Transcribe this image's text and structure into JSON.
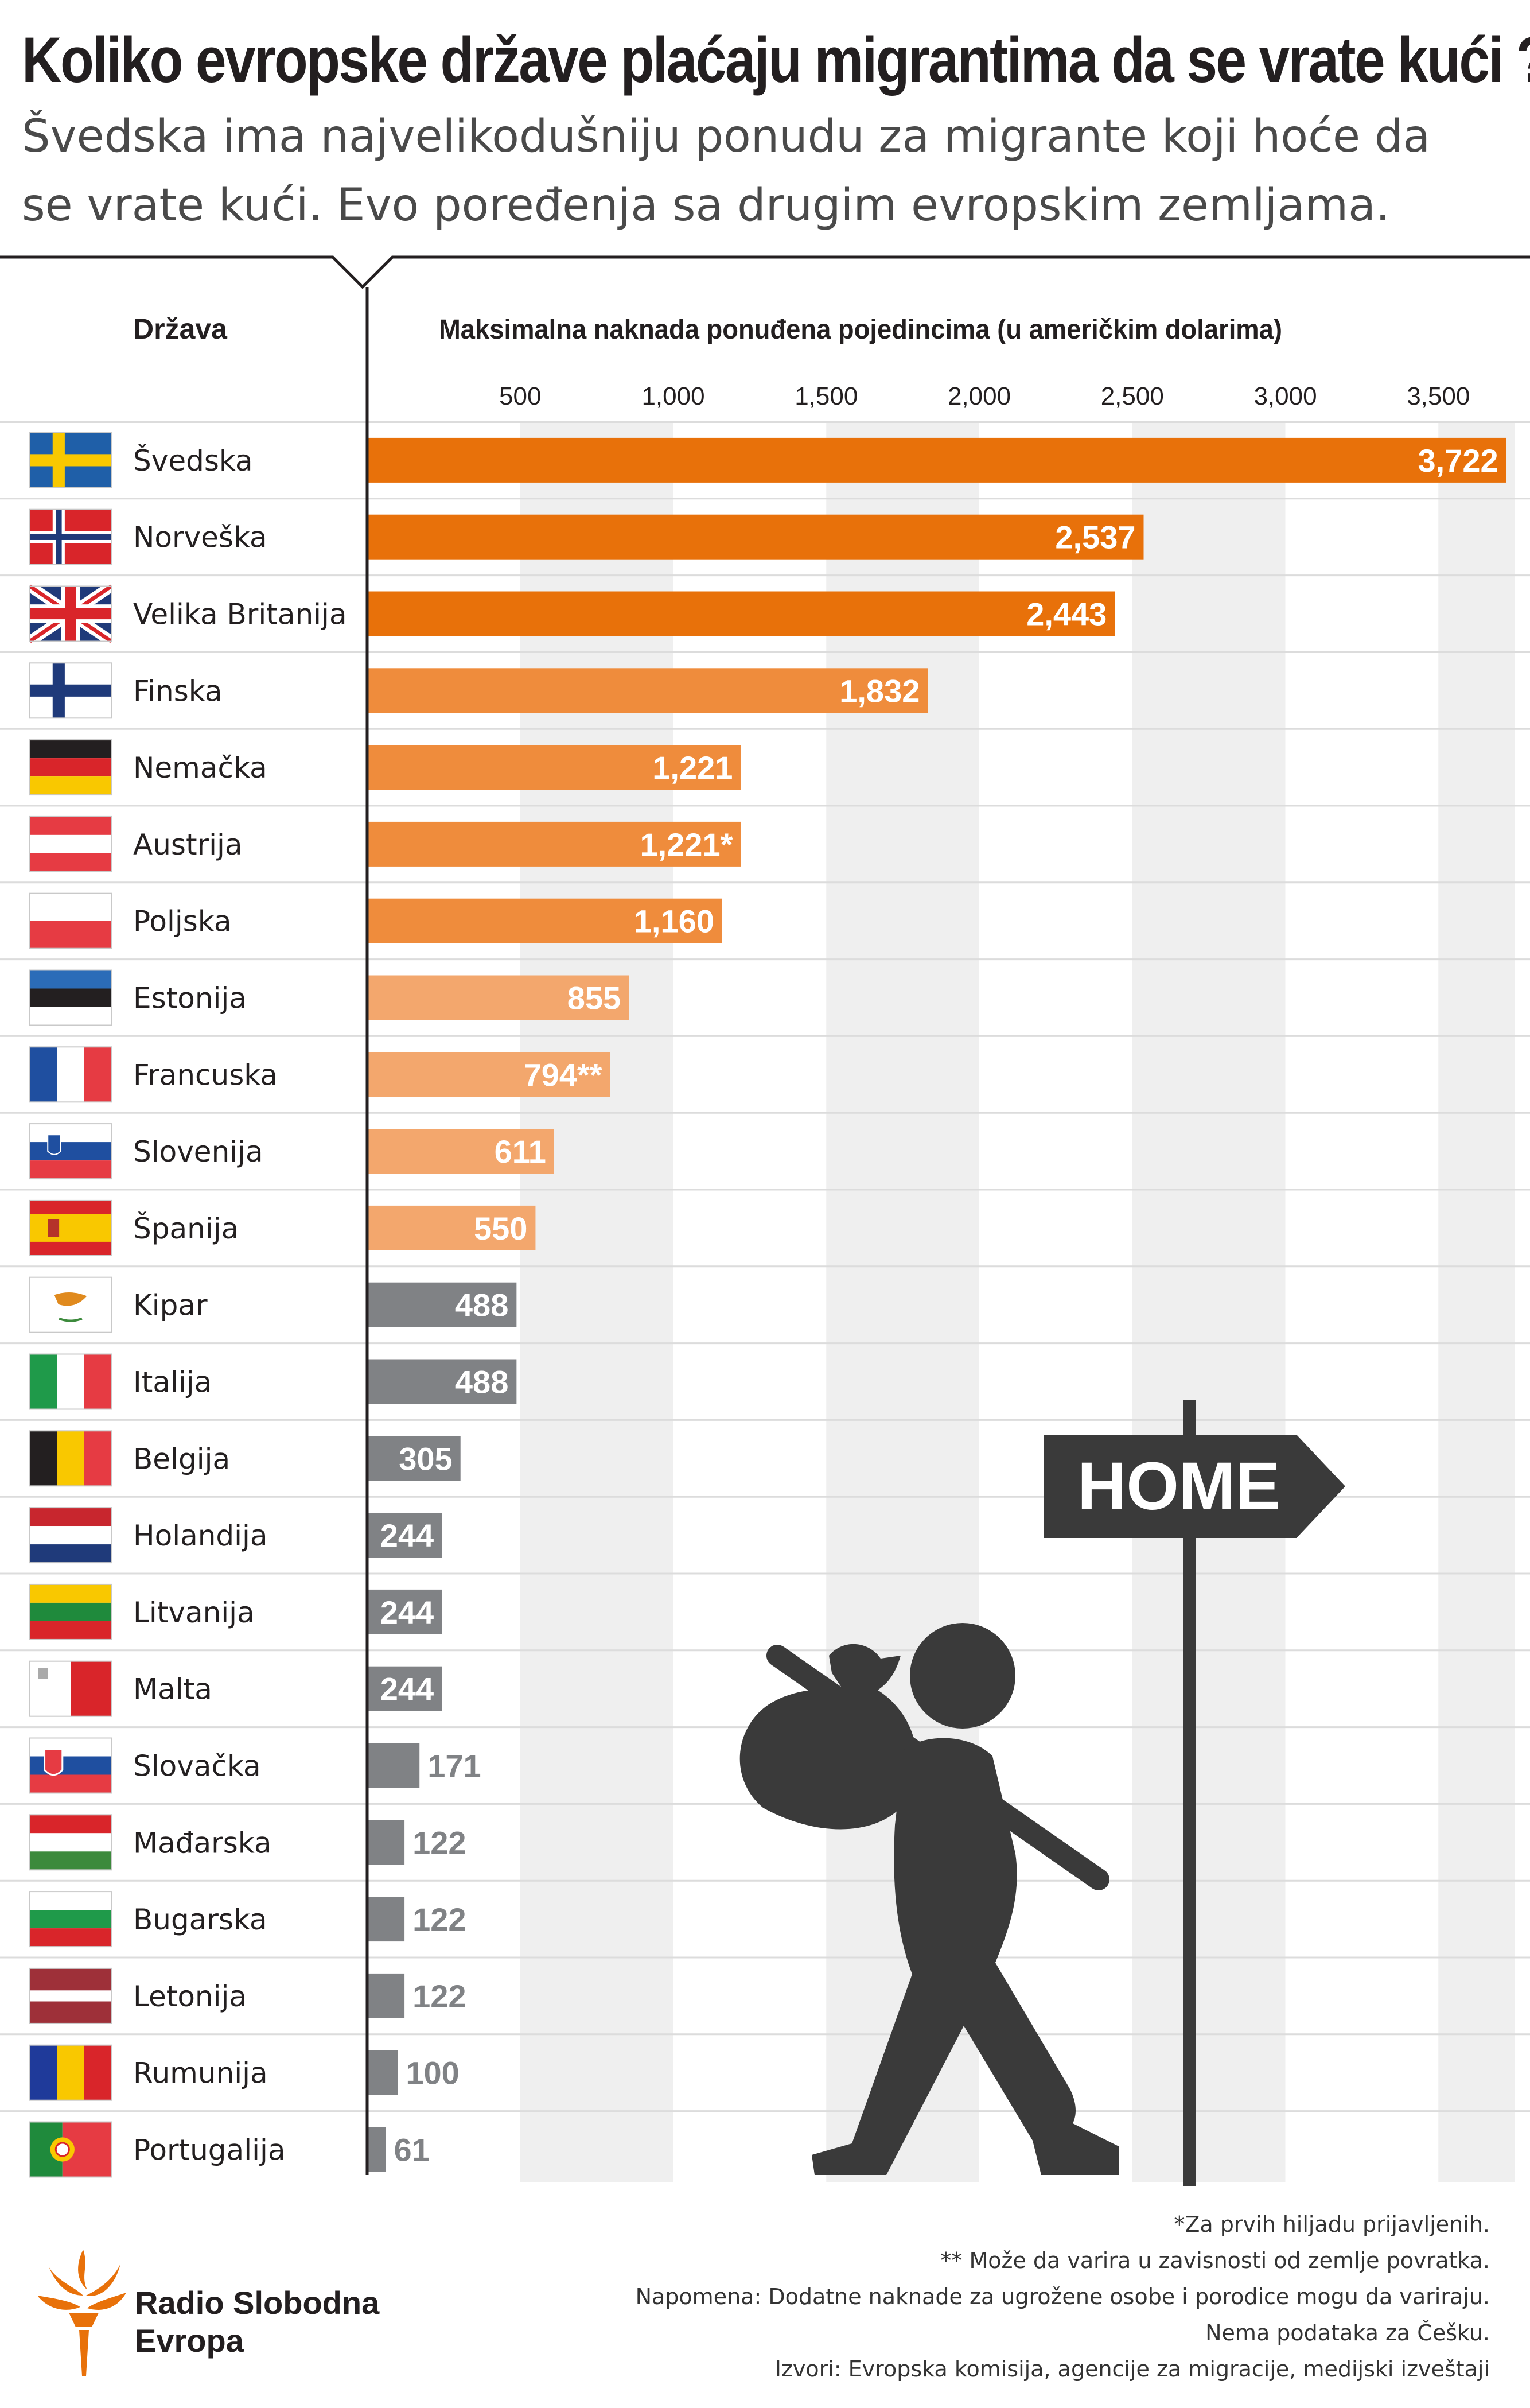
{
  "header": {
    "title": "Koliko evropske države plaćaju migrantima da se vrate kući ?",
    "subtitle": "Švedska ima najvelikodušniju ponudu za migrante koji hoće da se vrate kući. Evo poređenja sa drugim evropskim zemljama."
  },
  "chart_data": {
    "type": "bar",
    "orientation": "horizontal",
    "column_header": "Država",
    "xlabel": "Maksimalna naknada ponuđena pojedincima (u američkim dolarima)",
    "x_ticks": [
      "500",
      "1,000",
      "1,500",
      "2,000",
      "2,500",
      "3,000",
      "3,500"
    ],
    "xlim": [
      0,
      3750
    ],
    "grid": "alternating vertical bands",
    "categories": [
      "Švedska",
      "Norveška",
      "Velika Britanija",
      "Finska",
      "Nemačka",
      "Austrija",
      "Poljska",
      "Estonija",
      "Francuska",
      "Slovenija",
      "Španija",
      "Kipar",
      "Italija",
      "Belgija",
      "Holandija",
      "Litvanija",
      "Malta",
      "Slovačka",
      "Mađarska",
      "Bugarska",
      "Letonija",
      "Rumunija",
      "Portugalija"
    ],
    "values": [
      3722,
      2537,
      2443,
      1832,
      1221,
      1221,
      1160,
      855,
      794,
      611,
      550,
      488,
      488,
      305,
      244,
      244,
      244,
      171,
      122,
      122,
      122,
      100,
      61
    ],
    "value_labels": [
      "3,722",
      "2,537",
      "2,443",
      "1,832",
      "1,221",
      "1,221*",
      "1,160",
      "855",
      "794**",
      "611",
      "550",
      "488",
      "488",
      "305",
      "244",
      "244",
      "244",
      "171",
      "122",
      "122",
      "122",
      "100",
      "61"
    ],
    "flags": [
      "sweden-flag",
      "norway-flag",
      "uk-flag",
      "finland-flag",
      "germany-flag",
      "austria-flag",
      "poland-flag",
      "estonia-flag",
      "france-flag",
      "slovenia-flag",
      "spain-flag",
      "cyprus-flag",
      "italy-flag",
      "belgium-flag",
      "netherlands-flag",
      "lithuania-flag",
      "malta-flag",
      "slovakia-flag",
      "hungary-flag",
      "bulgaria-flag",
      "latvia-flag",
      "romania-flag",
      "portugal-flag"
    ],
    "bar_color_tiers": [
      {
        "min": 2000,
        "color": "#e8710a"
      },
      {
        "min": 1000,
        "color": "#ef8c3c"
      },
      {
        "min": 500,
        "color": "#f3a76d"
      },
      {
        "min": 0,
        "color": "#808285"
      }
    ]
  },
  "illustration": {
    "sign_text": "HOME",
    "icons": [
      "signpost-icon",
      "walking-person-with-bundle-icon"
    ]
  },
  "footnotes": [
    "*Za prvih hiljadu prijavljenih.",
    "** Može da varira u zavisnosti od zemlje povratka.",
    "Napomena: Dodatne naknade za ugrožene osobe i porodice mogu da variraju.",
    "Nema podataka za Češku.",
    "Izvori: Evropska komisija, agencije za migracije, medijski izveštaji"
  ],
  "logo": {
    "line1": "Radio Slobodna",
    "line2": "Evropa",
    "color": "#e8710a"
  }
}
